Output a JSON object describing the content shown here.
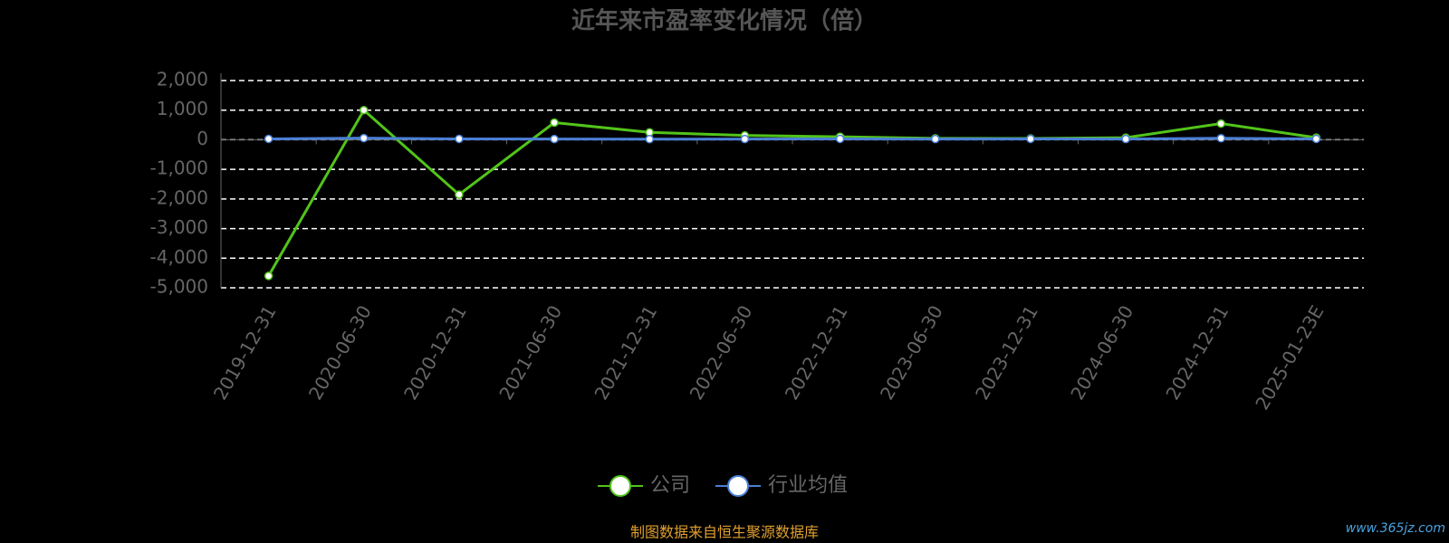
{
  "chart_data": {
    "type": "line",
    "title": "近年来市盈率变化情况（倍）",
    "categories": [
      "2019-12-31",
      "2020-06-30",
      "2020-12-31",
      "2021-06-30",
      "2021-12-31",
      "2022-06-30",
      "2022-12-31",
      "2023-06-30",
      "2023-12-31",
      "2024-06-30",
      "2024-12-31",
      "2025-01-23E"
    ],
    "series": [
      {
        "name": "公司",
        "color": "#52c41a",
        "values": [
          -4600,
          1000,
          -1850,
          580,
          250,
          145,
          102,
          48,
          42,
          70,
          546,
          71
        ]
      },
      {
        "name": "行业均值",
        "color": "#4a7fd6",
        "values": [
          30,
          55,
          30,
          25,
          20,
          25,
          30,
          25,
          30,
          25,
          50,
          30
        ]
      }
    ],
    "ylim": [
      -5000,
      2000
    ],
    "yticks": [
      {
        "value": 2000,
        "label": "2,000"
      },
      {
        "value": 1000,
        "label": "1,000"
      },
      0,
      {
        "value": -1000,
        "label": "-1,000"
      },
      {
        "value": -2000,
        "label": "-2,000"
      },
      {
        "value": -3000,
        "label": "-3,000"
      },
      {
        "value": -4000,
        "label": "-4,000"
      },
      {
        "value": -5000,
        "label": "-5,000"
      }
    ],
    "grid": true,
    "source": "制图数据来自恒生聚源数据库",
    "watermark": "www.365jz.com"
  }
}
